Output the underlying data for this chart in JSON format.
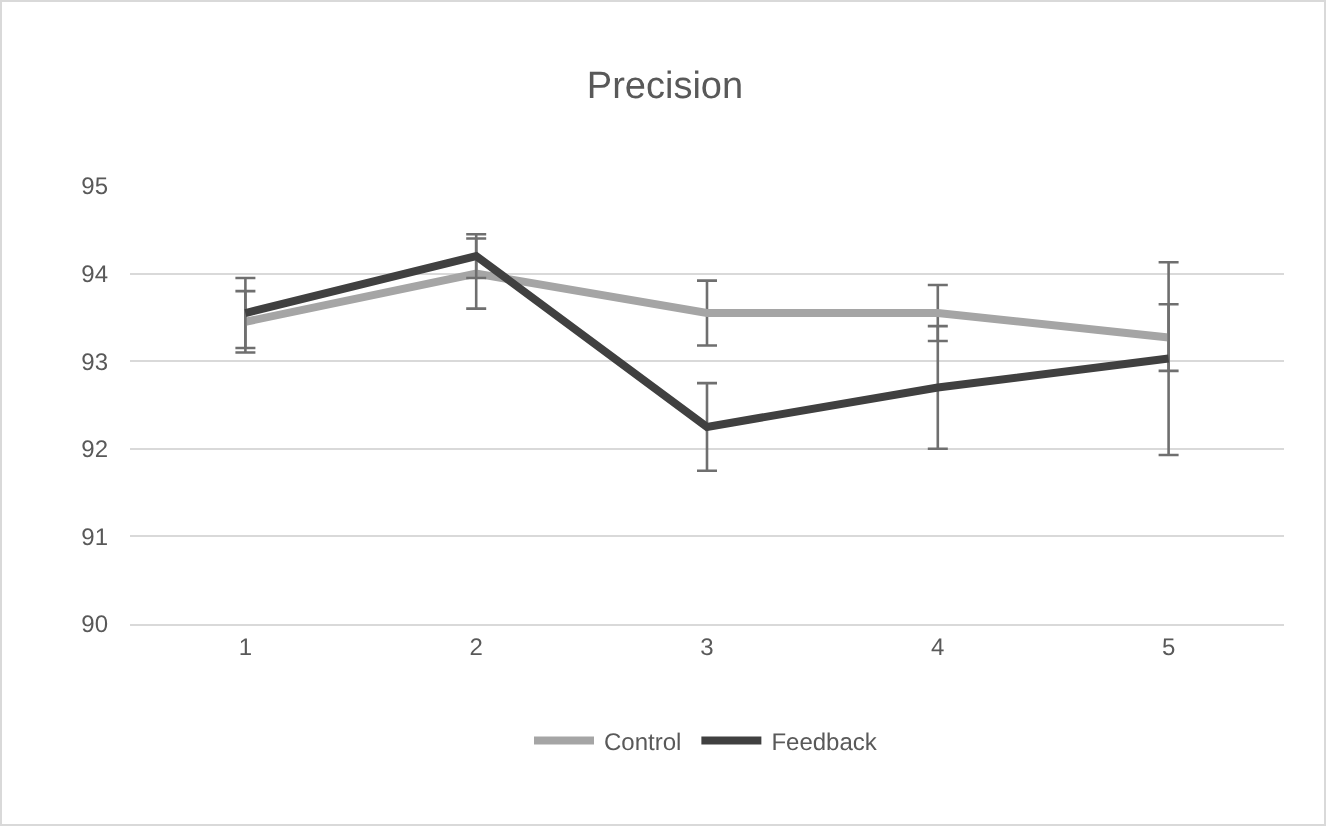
{
  "chart_data": {
    "type": "line",
    "title": "Precision",
    "categories": [
      "1",
      "2",
      "3",
      "4",
      "5"
    ],
    "series": [
      {
        "name": "Control",
        "color": "#a5a5a5",
        "values": [
          93.45,
          94.0,
          93.55,
          93.55,
          93.27
        ],
        "errors": [
          0.35,
          0.4,
          0.37,
          0.32,
          0.38
        ]
      },
      {
        "name": "Feedback",
        "color": "#404040",
        "values": [
          93.55,
          94.2,
          92.25,
          92.7,
          93.03
        ],
        "errors": [
          0.4,
          0.25,
          0.5,
          0.7,
          1.1
        ]
      }
    ],
    "ylim": [
      90,
      95
    ],
    "yticks": [
      90,
      91,
      92,
      93,
      94,
      95
    ],
    "grid": "y",
    "legend": "bottom",
    "marker": "none",
    "line_style": "solid"
  }
}
